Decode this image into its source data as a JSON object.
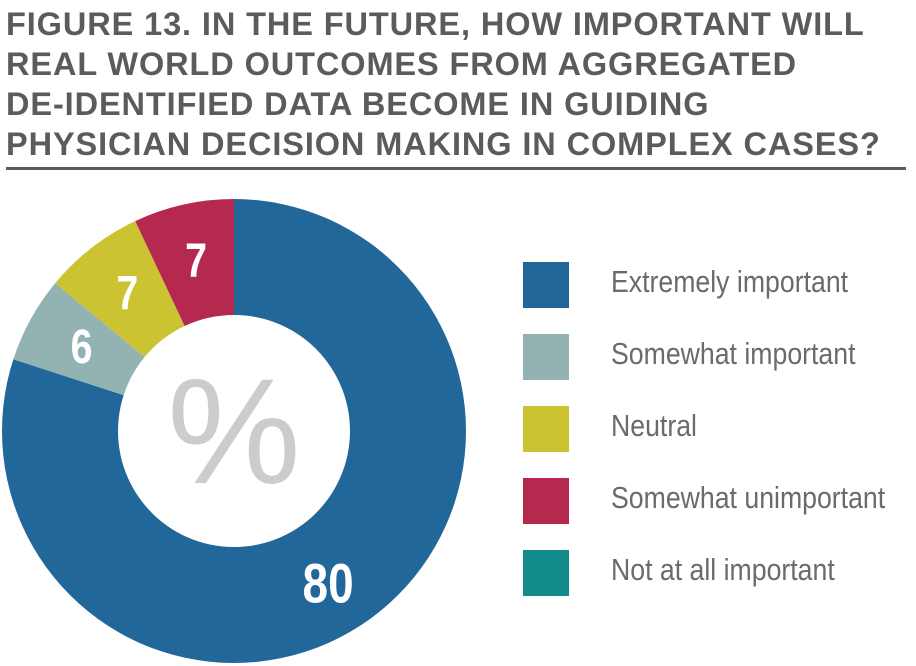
{
  "title_lines": [
    "FIGURE 13. IN THE FUTURE, HOW IMPORTANT WILL",
    "REAL WORLD OUTCOMES FROM AGGREGATED",
    "DE-IDENTIFIED DATA BECOME IN GUIDING",
    "PHYSICIAN DECISION MAKING IN COMPLEX CASES?"
  ],
  "center_label": "%",
  "chart_data": {
    "type": "pie",
    "title": "FIGURE 13. IN THE FUTURE, HOW IMPORTANT WILL REAL WORLD OUTCOMES FROM AGGREGATED DE-IDENTIFIED DATA BECOME IN GUIDING PHYSICIAN DECISION MAKING IN COMPLEX CASES?",
    "donut": true,
    "unit": "%",
    "legend_position": "right",
    "categories": [
      "Extremely important",
      "Somewhat important",
      "Neutral",
      "Somewhat unimportant",
      "Not at all important"
    ],
    "values": [
      80,
      6,
      7,
      7,
      0
    ],
    "data_labels": [
      "80",
      "6",
      "7",
      "7",
      ""
    ],
    "colors": [
      "#22679a",
      "#93b3b3",
      "#cbc331",
      "#b5294f",
      "#138b8a"
    ]
  }
}
